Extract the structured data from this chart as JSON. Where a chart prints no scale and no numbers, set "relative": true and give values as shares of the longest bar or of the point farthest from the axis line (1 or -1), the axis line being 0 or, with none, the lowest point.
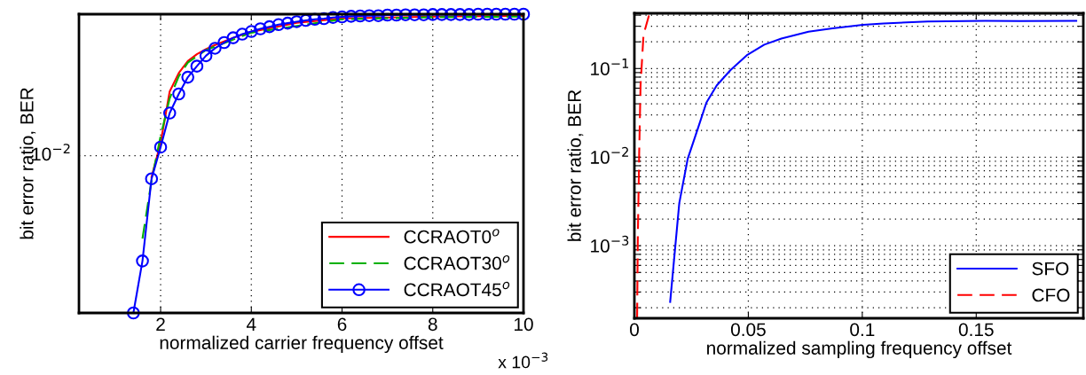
{
  "chart_data": [
    {
      "type": "line",
      "xlabel": "normalized carrier frequency offset",
      "ylabel": "bit error ratio, BER",
      "grid": true,
      "legend": "bottom right",
      "xlim": [
        0.2,
        10
      ],
      "xticks": [
        2,
        4,
        6,
        8,
        10
      ],
      "relative": true,
      "ref_lines": [
        {
          "axis": "y",
          "value": 0.526,
          "label": "10$^{−2}$"
        }
      ],
      "annotations": [
        "x 10$^{−3}$"
      ],
      "series": [
        {
          "name": "CCRAOT0$^{o}$",
          "color": "#ff0000",
          "line_style": "solid",
          "marker": "none",
          "x": [
            1.8,
            2.0,
            2.2,
            2.4,
            2.6,
            2.8,
            3.0,
            3.2,
            3.6,
            4.0,
            5.0,
            6.0,
            8.0,
            10.0
          ],
          "values": [
            0.455,
            0.569,
            0.741,
            0.803,
            0.843,
            0.866,
            0.883,
            0.897,
            0.921,
            0.941,
            0.971,
            0.986,
            0.992,
            0.994
          ]
        },
        {
          "name": "CCRAOT30$^{o}$",
          "color": "#00b000",
          "line_style": "dashed",
          "marker": "none",
          "x": [
            1.6,
            1.8,
            2.0,
            2.2,
            2.4,
            2.6,
            3.0,
            4.0,
            6.0,
            8.0,
            10.0
          ],
          "values": [
            0.249,
            0.443,
            0.592,
            0.718,
            0.792,
            0.838,
            0.88,
            0.938,
            0.983,
            0.99,
            0.992
          ]
        },
        {
          "name": "CCRAOT45$^{o}$",
          "color": "#0000ff",
          "line_style": "solid",
          "marker": "circle",
          "x": [
            1.4,
            1.6,
            1.8,
            2.0,
            2.2,
            2.4,
            2.6,
            2.8,
            3.0,
            3.2,
            3.4,
            3.6,
            3.8,
            4.0,
            4.2,
            4.4,
            4.6,
            4.8,
            5.0,
            5.2,
            5.4,
            5.6,
            5.8,
            6.0,
            6.2,
            6.4,
            6.6,
            6.8,
            7.0,
            7.2,
            7.4,
            7.6,
            7.8,
            8.0,
            8.2,
            8.4,
            8.6,
            8.8,
            9.0,
            9.2,
            9.4,
            9.6,
            9.8,
            10.0
          ],
          "values": [
            0,
            0.174,
            0.449,
            0.555,
            0.669,
            0.733,
            0.789,
            0.826,
            0.861,
            0.886,
            0.905,
            0.921,
            0.933,
            0.942,
            0.951,
            0.958,
            0.965,
            0.97,
            0.975,
            0.979,
            0.983,
            0.985,
            0.989,
            0.991,
            0.993,
            0.994,
            0.995,
            0.995,
            0.997,
            0.997,
            0.998,
            0.998,
            0.998,
            0.999,
            0.999,
            0.999,
            0.999,
            0.999,
            1,
            1,
            1,
            1,
            1,
            1
          ]
        }
      ]
    },
    {
      "type": "line",
      "xlabel": "normalized sampling frequency offset",
      "ylabel": "bit error ratio, BER",
      "log": "y",
      "grid": true,
      "legend": "bottom right",
      "xlim": [
        0,
        0.197
      ],
      "xticks": [
        0,
        0.05,
        0.1,
        0.15
      ],
      "ylim": [
        0.000152,
        0.42
      ],
      "yticks": [
        {
          "value": 0.0002,
          "label": null
        },
        {
          "value": 0.0003,
          "label": null
        },
        {
          "value": 0.0004,
          "label": null
        },
        {
          "value": 0.0005,
          "label": null
        },
        {
          "value": 0.0006,
          "label": null
        },
        {
          "value": 0.0007,
          "label": null
        },
        {
          "value": 0.0008,
          "label": null
        },
        {
          "value": 0.0009,
          "label": null
        },
        {
          "value": 0.001,
          "label": "10$^{−3}$"
        },
        {
          "value": 0.002,
          "label": null
        },
        {
          "value": 0.003,
          "label": null
        },
        {
          "value": 0.004,
          "label": null
        },
        {
          "value": 0.005,
          "label": null
        },
        {
          "value": 0.006,
          "label": null
        },
        {
          "value": 0.007,
          "label": null
        },
        {
          "value": 0.008,
          "label": null
        },
        {
          "value": 0.009,
          "label": null
        },
        {
          "value": 0.01,
          "label": "10$^{−2}$"
        },
        {
          "value": 0.02,
          "label": null
        },
        {
          "value": 0.03,
          "label": null
        },
        {
          "value": 0.04,
          "label": null
        },
        {
          "value": 0.05,
          "label": null
        },
        {
          "value": 0.06,
          "label": null
        },
        {
          "value": 0.07,
          "label": null
        },
        {
          "value": 0.08,
          "label": null
        },
        {
          "value": 0.09,
          "label": null
        },
        {
          "value": 0.1,
          "label": "10$^{−1}$"
        },
        {
          "value": 0.2,
          "label": null
        },
        {
          "value": 0.3,
          "label": null
        },
        {
          "value": 0.4,
          "label": null
        }
      ],
      "series": [
        {
          "name": "SFO",
          "color": "#0000ff",
          "line_style": "solid",
          "marker": "none",
          "x": [
            0.0157,
            0.0197,
            0.0234,
            0.0279,
            0.0316,
            0.0361,
            0.0421,
            0.0496,
            0.057,
            0.0645,
            0.0764,
            0.0869,
            0.1003,
            0.1093,
            0.1287,
            0.154,
            0.169,
            0.1939
          ],
          "values": [
            0.000232,
            0.00303,
            0.00957,
            0.0212,
            0.0412,
            0.0643,
            0.0957,
            0.143,
            0.186,
            0.218,
            0.26,
            0.284,
            0.311,
            0.322,
            0.34,
            0.345,
            0.343,
            0.345
          ]
        },
        {
          "name": "CFO",
          "color": "#ff0000",
          "line_style": "dashed",
          "marker": "none",
          "x": [
            0.0012,
            0.0015,
            0.0021,
            0.0027,
            0.004,
            0.0063,
            0.0085
          ],
          "values": [
            0.000155,
            0.0012,
            0.011,
            0.064,
            0.24,
            0.39,
            0.415
          ]
        }
      ]
    }
  ]
}
